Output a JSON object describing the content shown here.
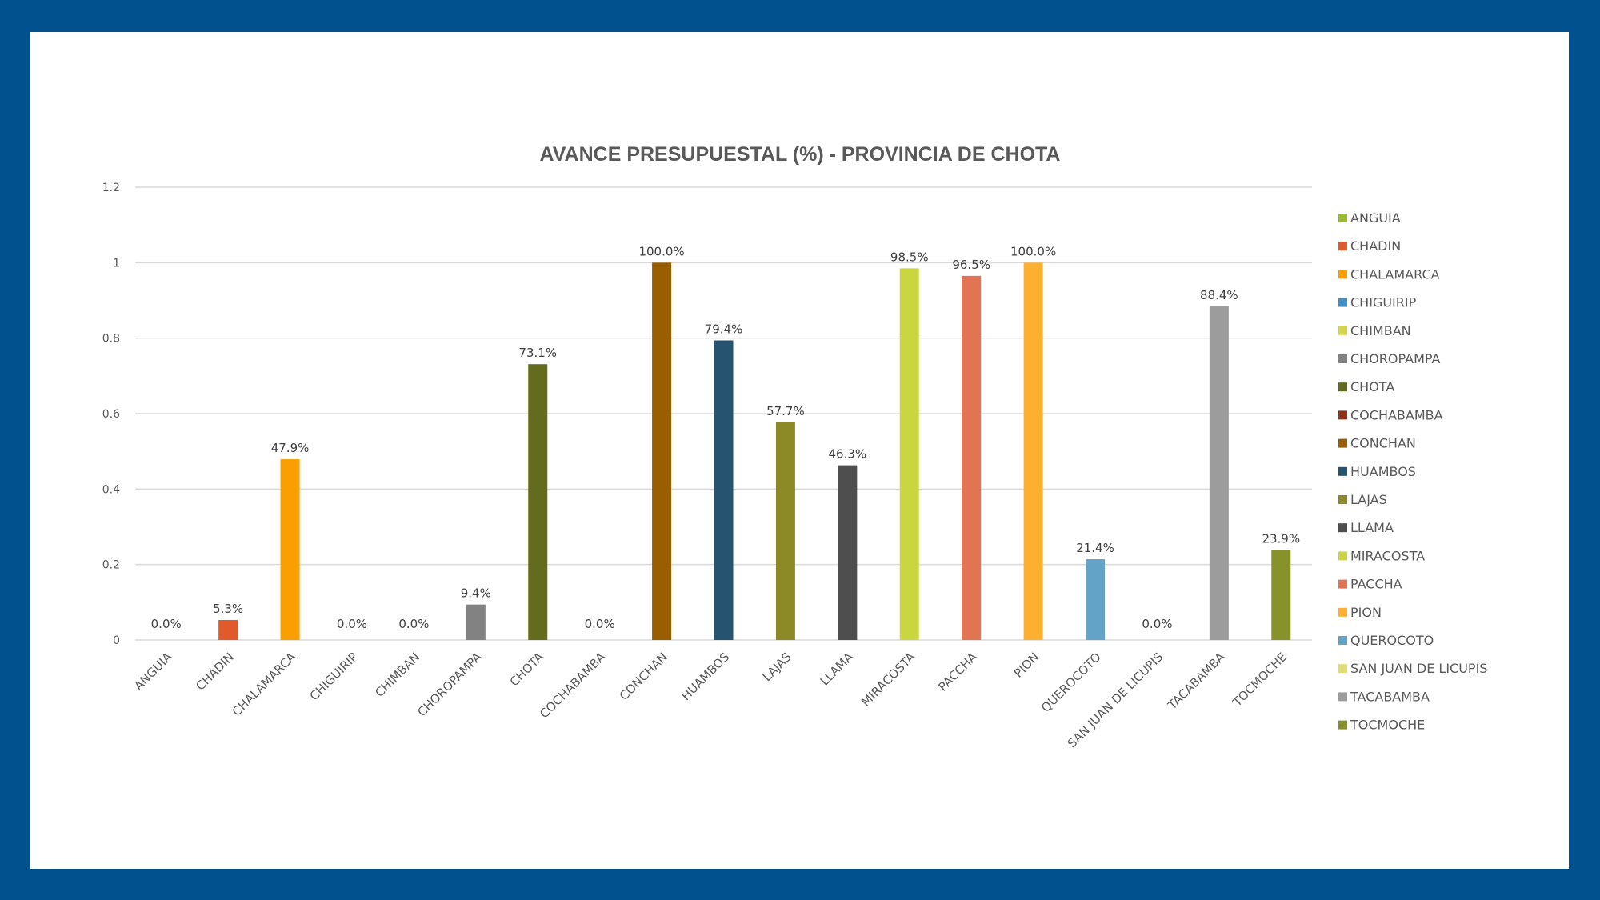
{
  "page": {
    "frame_color": "#00518e",
    "panel_color": "#ffffff"
  },
  "chart_data": {
    "type": "bar",
    "title": "AVANCE PRESUPUESTAL (%) - PROVINCIA DE CHOTA",
    "xlabel": "",
    "ylabel": "",
    "ylim": [
      0,
      1.2
    ],
    "yticks": [
      0,
      0.2,
      0.4,
      0.6,
      0.8,
      1,
      1.2
    ],
    "ytick_labels": [
      "0",
      "0.2",
      "0.4",
      "0.6",
      "0.8",
      "1",
      "1.2"
    ],
    "grid": true,
    "legend_position": "right",
    "categories": [
      "ANGUIA",
      "CHADIN",
      "CHALAMARCA",
      "CHIGUIRIP",
      "CHIMBAN",
      "CHOROPAMPA",
      "CHOTA",
      "COCHABAMBA",
      "CONCHAN",
      "HUAMBOS",
      "LAJAS",
      "LLAMA",
      "MIRACOSTA",
      "PACCHA",
      "PION",
      "QUEROCOTO",
      "SAN JUAN DE LICUPIS",
      "TACABAMBA",
      "TOCMOCHE"
    ],
    "values": [
      0.0,
      0.053,
      0.479,
      0.0,
      0.0,
      0.094,
      0.731,
      0.0,
      1.0,
      0.794,
      0.577,
      0.463,
      0.985,
      0.965,
      1.0,
      0.214,
      0.0,
      0.884,
      0.239
    ],
    "data_labels": [
      "0.0%",
      "5.3%",
      "47.9%",
      "0.0%",
      "0.0%",
      "9.4%",
      "73.1%",
      "0.0%",
      "100.0%",
      "79.4%",
      "57.7%",
      "46.3%",
      "98.5%",
      "96.5%",
      "100.0%",
      "21.4%",
      "0.0%",
      "88.4%",
      "23.9%"
    ],
    "colors": [
      "#9bbb2f",
      "#e05a2b",
      "#f99f00",
      "#4190c5",
      "#d6d54a",
      "#828282",
      "#626b1e",
      "#8e3318",
      "#985e00",
      "#265370",
      "#8c8a26",
      "#4e4e4e",
      "#c7d641",
      "#e37453",
      "#fdaf2f",
      "#62a3c7",
      "#e0de70",
      "#9c9c9c",
      "#87922a"
    ],
    "legend": [
      "ANGUIA",
      "CHADIN",
      "CHALAMARCA",
      "CHIGUIRIP",
      "CHIMBAN",
      "CHOROPAMPA",
      "CHOTA",
      "COCHABAMBA",
      "CONCHAN",
      "HUAMBOS",
      "LAJAS",
      "LLAMA",
      "MIRACOSTA",
      "PACCHA",
      "PION",
      "QUEROCOTO",
      "SAN JUAN DE LICUPIS",
      "TACABAMBA",
      "TOCMOCHE"
    ]
  }
}
